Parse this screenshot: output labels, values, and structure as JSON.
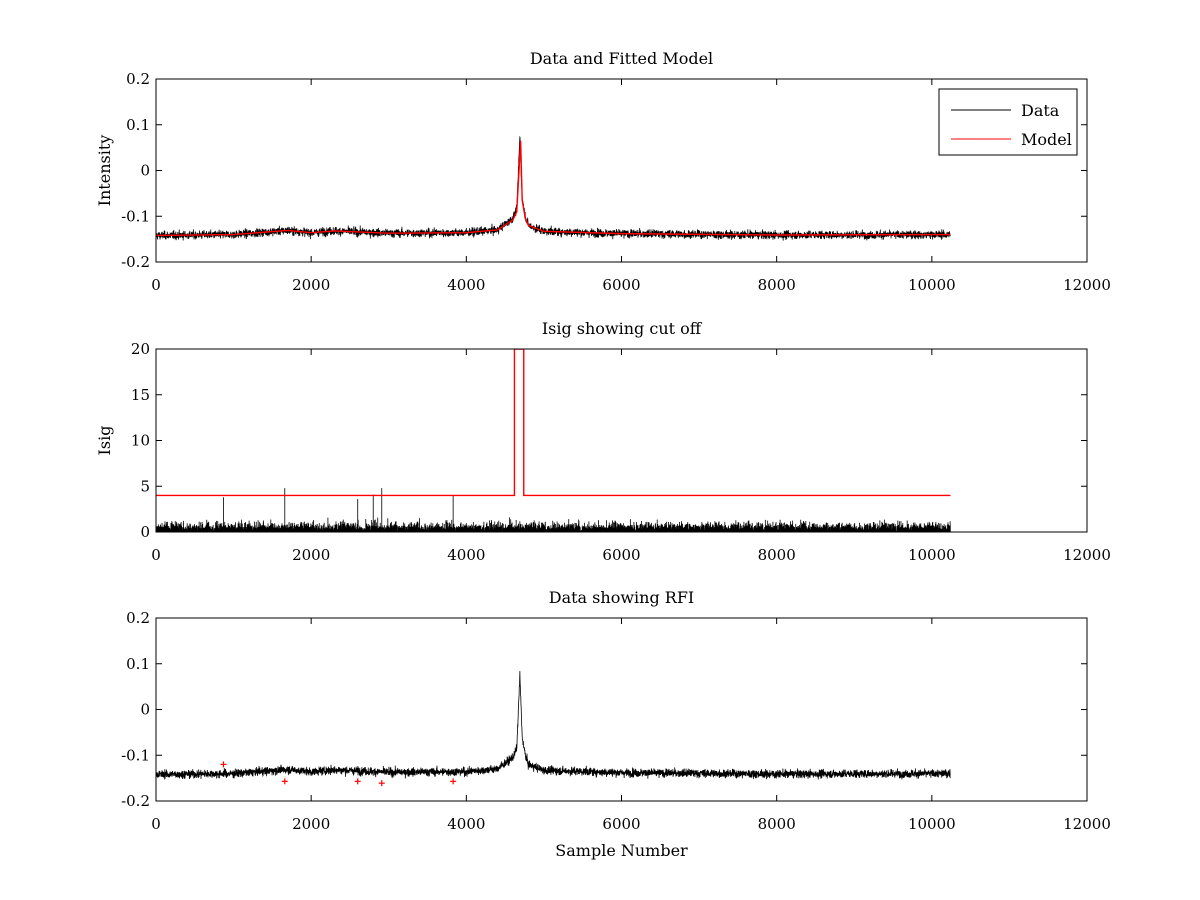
{
  "chart_data": [
    {
      "type": "line",
      "title": "Data and Fitted Model",
      "xlabel": "",
      "ylabel": "Intensity",
      "xlim": [
        0,
        12000
      ],
      "ylim": [
        -0.2,
        0.2
      ],
      "xticks": [
        "0",
        "2000",
        "4000",
        "6000",
        "8000",
        "10000",
        "12000"
      ],
      "yticks": [
        "0.2",
        "0.1",
        "0",
        "-0.1",
        "-0.2"
      ],
      "legend": {
        "placement": "top-right",
        "entries": [
          "Data",
          "Model"
        ]
      },
      "series": [
        {
          "name": "Data",
          "color": "#000000",
          "n_samples": 10240,
          "noise": 0.009,
          "x": [
            0,
            1000,
            1700,
            2000,
            2300,
            3000,
            4000,
            4400,
            4600,
            4650,
            4690,
            4720,
            4760,
            4800,
            5000,
            6000,
            8000,
            10240
          ],
          "y": [
            -0.142,
            -0.14,
            -0.131,
            -0.136,
            -0.132,
            -0.137,
            -0.136,
            -0.13,
            -0.105,
            -0.085,
            0.075,
            -0.06,
            -0.1,
            -0.12,
            -0.133,
            -0.138,
            -0.141,
            -0.14
          ]
        },
        {
          "name": "Model",
          "color": "#ff0000",
          "x": [
            0,
            1000,
            1700,
            2000,
            2300,
            3000,
            4000,
            4400,
            4600,
            4650,
            4700,
            4720,
            4760,
            4800,
            5000,
            6000,
            8000,
            10240
          ],
          "y": [
            -0.142,
            -0.14,
            -0.131,
            -0.136,
            -0.132,
            -0.137,
            -0.136,
            -0.13,
            -0.108,
            -0.09,
            0.065,
            -0.065,
            -0.105,
            -0.12,
            -0.133,
            -0.138,
            -0.141,
            -0.14
          ]
        }
      ]
    },
    {
      "type": "line",
      "title": "Isig showing cut off",
      "xlabel": "",
      "ylabel": "Isig",
      "xlim": [
        0,
        12000
      ],
      "ylim": [
        0,
        20
      ],
      "xticks": [
        "0",
        "2000",
        "4000",
        "6000",
        "8000",
        "10000",
        "12000"
      ],
      "yticks": [
        "20",
        "15",
        "10",
        "5",
        "0"
      ],
      "series": [
        {
          "color": "#000000",
          "n_samples": 10240,
          "typical_max": 2.2,
          "spikes": [
            {
              "x": 870,
              "y": 3.8
            },
            {
              "x": 1660,
              "y": 4.8
            },
            {
              "x": 2600,
              "y": 3.6
            },
            {
              "x": 2800,
              "y": 4.1
            },
            {
              "x": 2910,
              "y": 4.8
            },
            {
              "x": 3830,
              "y": 4.0
            }
          ]
        },
        {
          "color": "#ff0000",
          "x": [
            0,
            4620,
            4620,
            4740,
            4740,
            10240
          ],
          "y": [
            4,
            4,
            20,
            20,
            4,
            4
          ]
        }
      ]
    },
    {
      "type": "line",
      "title": "Data showing RFI",
      "xlabel": "Sample Number",
      "ylabel": "",
      "xlim": [
        0,
        12000
      ],
      "ylim": [
        -0.2,
        0.2
      ],
      "xticks": [
        "0",
        "2000",
        "4000",
        "6000",
        "8000",
        "10000",
        "12000"
      ],
      "yticks": [
        "0.2",
        "0.1",
        "0",
        "-0.1",
        "-0.2"
      ],
      "series": [
        {
          "color": "#000000",
          "n_samples": 10240,
          "noise": 0.009,
          "x": [
            0,
            1000,
            1700,
            2000,
            2300,
            3000,
            4000,
            4400,
            4600,
            4650,
            4690,
            4720,
            4760,
            4800,
            5000,
            6000,
            8000,
            10240
          ],
          "y": [
            -0.142,
            -0.14,
            -0.131,
            -0.136,
            -0.132,
            -0.137,
            -0.136,
            -0.13,
            -0.105,
            -0.085,
            0.075,
            -0.06,
            -0.1,
            -0.12,
            -0.133,
            -0.138,
            -0.141,
            -0.14
          ]
        },
        {
          "color": "#ff0000",
          "marker": "+",
          "points": [
            {
              "x": 870,
              "y": -0.12
            },
            {
              "x": 1660,
              "y": -0.157
            },
            {
              "x": 2600,
              "y": -0.157
            },
            {
              "x": 2910,
              "y": -0.161
            },
            {
              "x": 3830,
              "y": -0.157
            }
          ]
        }
      ]
    }
  ]
}
